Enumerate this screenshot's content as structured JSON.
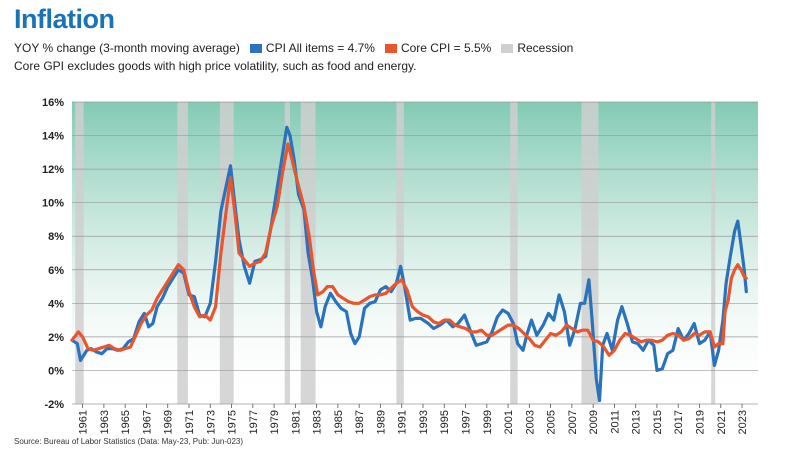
{
  "header": {
    "title": "Inflation",
    "subtitle": "YOY % change (3-month moving average)",
    "note": "Core GPI excludes goods with high price volatility, such as food and energy.",
    "source": "Source: Bureau of Labor Statistics (Data: May-23, Pub: Jun-023)"
  },
  "colors": {
    "title": "#1a73b8",
    "cpi": "#2a72bb",
    "core": "#e8552e",
    "recession": "#cfcfcf",
    "gradient_top": "#3fae8d",
    "gradient_bottom": "#ffffff"
  },
  "chart_data": {
    "type": "line",
    "xlim": [
      1960,
      2024.5
    ],
    "ylim": [
      -2,
      16
    ],
    "y_ticks": [
      "-2%",
      "0%",
      "2%",
      "4%",
      "6%",
      "8%",
      "10%",
      "12%",
      "14%",
      "16%"
    ],
    "y_tick_values": [
      -2,
      0,
      2,
      4,
      6,
      8,
      10,
      12,
      14,
      16
    ],
    "x_ticks": [
      "1961",
      "1963",
      "1965",
      "1967",
      "1969",
      "1971",
      "1973",
      "1975",
      "1977",
      "1979",
      "1981",
      "1983",
      "1985",
      "1987",
      "1989",
      "1991",
      "1993",
      "1995",
      "1997",
      "1999",
      "2001",
      "2003",
      "2005",
      "2007",
      "2009",
      "2011",
      "2013",
      "2015",
      "2017",
      "2019",
      "2021",
      "2023"
    ],
    "x_tick_values": [
      1961,
      1963,
      1965,
      1967,
      1969,
      1971,
      1973,
      1975,
      1977,
      1979,
      1981,
      1983,
      1985,
      1987,
      1989,
      1991,
      1993,
      1995,
      1997,
      1999,
      2001,
      2003,
      2005,
      2007,
      2009,
      2011,
      2013,
      2015,
      2017,
      2019,
      2021,
      2023
    ],
    "legend": "top",
    "grid": true,
    "recessions": [
      [
        1960.3,
        1961.1
      ],
      [
        1969.9,
        1970.9
      ],
      [
        1973.9,
        1975.2
      ],
      [
        1980.0,
        1980.5
      ],
      [
        1981.5,
        1982.9
      ],
      [
        1990.5,
        1991.2
      ],
      [
        2001.2,
        2001.9
      ],
      [
        2007.9,
        2009.5
      ],
      [
        2020.1,
        2020.4
      ]
    ],
    "series": [
      {
        "name": "CPI All items = 4.7%",
        "points": [
          [
            1960,
            1.8
          ],
          [
            1960.5,
            1.6
          ],
          [
            1960.8,
            0.6
          ],
          [
            1961,
            0.8
          ],
          [
            1961.4,
            1.2
          ],
          [
            1961.8,
            1.3
          ],
          [
            1962.3,
            1.1
          ],
          [
            1962.8,
            1.0
          ],
          [
            1963.3,
            1.3
          ],
          [
            1963.8,
            1.3
          ],
          [
            1964.3,
            1.2
          ],
          [
            1964.8,
            1.3
          ],
          [
            1965.3,
            1.7
          ],
          [
            1965.8,
            1.9
          ],
          [
            1966.3,
            2.9
          ],
          [
            1966.8,
            3.4
          ],
          [
            1967.2,
            2.6
          ],
          [
            1967.6,
            2.8
          ],
          [
            1968,
            3.8
          ],
          [
            1968.5,
            4.3
          ],
          [
            1969,
            5.0
          ],
          [
            1969.5,
            5.5
          ],
          [
            1970,
            6.0
          ],
          [
            1970.5,
            5.8
          ],
          [
            1971,
            4.5
          ],
          [
            1971.5,
            4.4
          ],
          [
            1972,
            3.3
          ],
          [
            1972.5,
            3.2
          ],
          [
            1973,
            4.0
          ],
          [
            1973.5,
            6.5
          ],
          [
            1974,
            9.5
          ],
          [
            1974.5,
            11.0
          ],
          [
            1974.9,
            12.2
          ],
          [
            1975.3,
            10.0
          ],
          [
            1975.7,
            7.8
          ],
          [
            1976.2,
            6.2
          ],
          [
            1976.7,
            5.2
          ],
          [
            1977.2,
            6.5
          ],
          [
            1977.7,
            6.6
          ],
          [
            1978.2,
            6.8
          ],
          [
            1978.7,
            8.5
          ],
          [
            1979.2,
            10.5
          ],
          [
            1979.7,
            12.5
          ],
          [
            1980.2,
            14.5
          ],
          [
            1980.5,
            14.0
          ],
          [
            1980.9,
            12.5
          ],
          [
            1981.3,
            10.5
          ],
          [
            1981.8,
            9.6
          ],
          [
            1982.2,
            7.0
          ],
          [
            1982.6,
            5.5
          ],
          [
            1983,
            3.5
          ],
          [
            1983.4,
            2.6
          ],
          [
            1983.8,
            3.8
          ],
          [
            1984.3,
            4.6
          ],
          [
            1984.8,
            4.1
          ],
          [
            1985.3,
            3.7
          ],
          [
            1985.8,
            3.5
          ],
          [
            1986.2,
            2.2
          ],
          [
            1986.6,
            1.6
          ],
          [
            1987,
            2.0
          ],
          [
            1987.5,
            3.7
          ],
          [
            1988,
            4.0
          ],
          [
            1988.5,
            4.1
          ],
          [
            1989,
            4.8
          ],
          [
            1989.5,
            5.0
          ],
          [
            1990,
            4.7
          ],
          [
            1990.5,
            5.2
          ],
          [
            1990.9,
            6.2
          ],
          [
            1991.3,
            4.9
          ],
          [
            1991.8,
            3.0
          ],
          [
            1992.3,
            3.1
          ],
          [
            1992.8,
            3.1
          ],
          [
            1993.5,
            2.8
          ],
          [
            1994,
            2.5
          ],
          [
            1994.6,
            2.7
          ],
          [
            1995.2,
            3.0
          ],
          [
            1995.8,
            2.6
          ],
          [
            1996.3,
            2.8
          ],
          [
            1996.9,
            3.3
          ],
          [
            1997.5,
            2.3
          ],
          [
            1998,
            1.5
          ],
          [
            1998.5,
            1.6
          ],
          [
            1999,
            1.7
          ],
          [
            1999.5,
            2.3
          ],
          [
            2000,
            3.2
          ],
          [
            2000.5,
            3.6
          ],
          [
            2001,
            3.4
          ],
          [
            2001.5,
            2.8
          ],
          [
            2001.9,
            1.6
          ],
          [
            2002.4,
            1.2
          ],
          [
            2002.8,
            2.2
          ],
          [
            2003.2,
            3.0
          ],
          [
            2003.7,
            2.1
          ],
          [
            2004.3,
            2.7
          ],
          [
            2004.8,
            3.4
          ],
          [
            2005.3,
            3.0
          ],
          [
            2005.8,
            4.5
          ],
          [
            2006.3,
            3.5
          ],
          [
            2006.8,
            1.5
          ],
          [
            2007.3,
            2.5
          ],
          [
            2007.8,
            4.0
          ],
          [
            2008.2,
            4.0
          ],
          [
            2008.6,
            5.4
          ],
          [
            2008.9,
            3.0
          ],
          [
            2009.3,
            -0.5
          ],
          [
            2009.6,
            -1.8
          ],
          [
            2009.9,
            1.5
          ],
          [
            2010.3,
            2.2
          ],
          [
            2010.8,
            1.2
          ],
          [
            2011.3,
            3.0
          ],
          [
            2011.7,
            3.8
          ],
          [
            2012.2,
            2.8
          ],
          [
            2012.7,
            1.7
          ],
          [
            2013.2,
            1.6
          ],
          [
            2013.7,
            1.2
          ],
          [
            2014.2,
            1.8
          ],
          [
            2014.7,
            1.5
          ],
          [
            2015,
            0.0
          ],
          [
            2015.5,
            0.1
          ],
          [
            2016,
            1.0
          ],
          [
            2016.5,
            1.2
          ],
          [
            2017,
            2.5
          ],
          [
            2017.5,
            1.8
          ],
          [
            2018,
            2.2
          ],
          [
            2018.5,
            2.8
          ],
          [
            2019,
            1.6
          ],
          [
            2019.5,
            1.8
          ],
          [
            2020,
            2.3
          ],
          [
            2020.4,
            0.3
          ],
          [
            2020.8,
            1.2
          ],
          [
            2021.2,
            3.0
          ],
          [
            2021.5,
            5.2
          ],
          [
            2021.9,
            6.8
          ],
          [
            2022.3,
            8.3
          ],
          [
            2022.6,
            8.9
          ],
          [
            2022.9,
            7.5
          ],
          [
            2023.2,
            6.0
          ],
          [
            2023.4,
            4.7
          ]
        ]
      },
      {
        "name": "Core CPI = 5.5%",
        "points": [
          [
            1960,
            1.8
          ],
          [
            1960.6,
            2.3
          ],
          [
            1961,
            2.0
          ],
          [
            1961.5,
            1.3
          ],
          [
            1962,
            1.2
          ],
          [
            1962.5,
            1.3
          ],
          [
            1963,
            1.4
          ],
          [
            1963.5,
            1.5
          ],
          [
            1964,
            1.3
          ],
          [
            1964.5,
            1.2
          ],
          [
            1965,
            1.3
          ],
          [
            1965.5,
            1.4
          ],
          [
            1966,
            2.1
          ],
          [
            1966.5,
            2.8
          ],
          [
            1967,
            3.3
          ],
          [
            1967.5,
            3.6
          ],
          [
            1968,
            4.3
          ],
          [
            1968.5,
            4.8
          ],
          [
            1969,
            5.3
          ],
          [
            1969.5,
            5.8
          ],
          [
            1970,
            6.3
          ],
          [
            1970.5,
            6.0
          ],
          [
            1971,
            4.7
          ],
          [
            1971.5,
            3.8
          ],
          [
            1972,
            3.2
          ],
          [
            1972.5,
            3.3
          ],
          [
            1973,
            3.0
          ],
          [
            1973.5,
            3.8
          ],
          [
            1974,
            7.0
          ],
          [
            1974.5,
            9.5
          ],
          [
            1974.9,
            11.5
          ],
          [
            1975.3,
            9.5
          ],
          [
            1975.7,
            7.0
          ],
          [
            1976.2,
            6.6
          ],
          [
            1976.7,
            6.2
          ],
          [
            1977.2,
            6.4
          ],
          [
            1977.7,
            6.5
          ],
          [
            1978.2,
            7.0
          ],
          [
            1978.7,
            8.5
          ],
          [
            1979.3,
            9.8
          ],
          [
            1979.8,
            11.8
          ],
          [
            1980.3,
            13.5
          ],
          [
            1980.6,
            12.8
          ],
          [
            1980.9,
            12.0
          ],
          [
            1981.3,
            11.0
          ],
          [
            1981.8,
            9.8
          ],
          [
            1982.3,
            8.0
          ],
          [
            1982.7,
            6.0
          ],
          [
            1983.1,
            4.5
          ],
          [
            1983.6,
            4.7
          ],
          [
            1984,
            5.0
          ],
          [
            1984.5,
            5.0
          ],
          [
            1985,
            4.5
          ],
          [
            1985.5,
            4.3
          ],
          [
            1986,
            4.1
          ],
          [
            1986.5,
            4.0
          ],
          [
            1987,
            4.0
          ],
          [
            1987.5,
            4.2
          ],
          [
            1988,
            4.4
          ],
          [
            1988.5,
            4.5
          ],
          [
            1989,
            4.5
          ],
          [
            1989.5,
            4.6
          ],
          [
            1990,
            4.9
          ],
          [
            1990.5,
            5.2
          ],
          [
            1991,
            5.4
          ],
          [
            1991.5,
            4.8
          ],
          [
            1992,
            3.8
          ],
          [
            1992.5,
            3.5
          ],
          [
            1993,
            3.3
          ],
          [
            1993.5,
            3.2
          ],
          [
            1994,
            2.9
          ],
          [
            1994.5,
            2.8
          ],
          [
            1995,
            3.0
          ],
          [
            1995.5,
            3.0
          ],
          [
            1996,
            2.7
          ],
          [
            1996.5,
            2.6
          ],
          [
            1997,
            2.5
          ],
          [
            1997.5,
            2.3
          ],
          [
            1998,
            2.3
          ],
          [
            1998.5,
            2.4
          ],
          [
            1999,
            2.1
          ],
          [
            1999.5,
            2.1
          ],
          [
            2000,
            2.3
          ],
          [
            2000.5,
            2.5
          ],
          [
            2001,
            2.7
          ],
          [
            2001.5,
            2.7
          ],
          [
            2002,
            2.5
          ],
          [
            2002.5,
            2.2
          ],
          [
            2003,
            1.9
          ],
          [
            2003.5,
            1.5
          ],
          [
            2004,
            1.4
          ],
          [
            2004.5,
            1.8
          ],
          [
            2005,
            2.2
          ],
          [
            2005.5,
            2.1
          ],
          [
            2006,
            2.3
          ],
          [
            2006.5,
            2.7
          ],
          [
            2007,
            2.5
          ],
          [
            2007.5,
            2.3
          ],
          [
            2008,
            2.4
          ],
          [
            2008.5,
            2.4
          ],
          [
            2009,
            1.8
          ],
          [
            2009.5,
            1.7
          ],
          [
            2010,
            1.4
          ],
          [
            2010.5,
            0.9
          ],
          [
            2011,
            1.2
          ],
          [
            2011.5,
            1.8
          ],
          [
            2012,
            2.2
          ],
          [
            2012.5,
            2.1
          ],
          [
            2013,
            1.9
          ],
          [
            2013.5,
            1.7
          ],
          [
            2014,
            1.8
          ],
          [
            2014.5,
            1.8
          ],
          [
            2015,
            1.7
          ],
          [
            2015.5,
            1.8
          ],
          [
            2016,
            2.1
          ],
          [
            2016.5,
            2.2
          ],
          [
            2017,
            2.1
          ],
          [
            2017.5,
            1.8
          ],
          [
            2018,
            1.9
          ],
          [
            2018.5,
            2.2
          ],
          [
            2019,
            2.1
          ],
          [
            2019.5,
            2.3
          ],
          [
            2020,
            2.3
          ],
          [
            2020.4,
            1.4
          ],
          [
            2020.8,
            1.6
          ],
          [
            2021.2,
            1.6
          ],
          [
            2021.4,
            3.5
          ],
          [
            2021.7,
            4.2
          ],
          [
            2022,
            5.5
          ],
          [
            2022.3,
            6.0
          ],
          [
            2022.6,
            6.3
          ],
          [
            2022.9,
            6.0
          ],
          [
            2023.2,
            5.6
          ],
          [
            2023.4,
            5.5
          ]
        ]
      }
    ]
  }
}
